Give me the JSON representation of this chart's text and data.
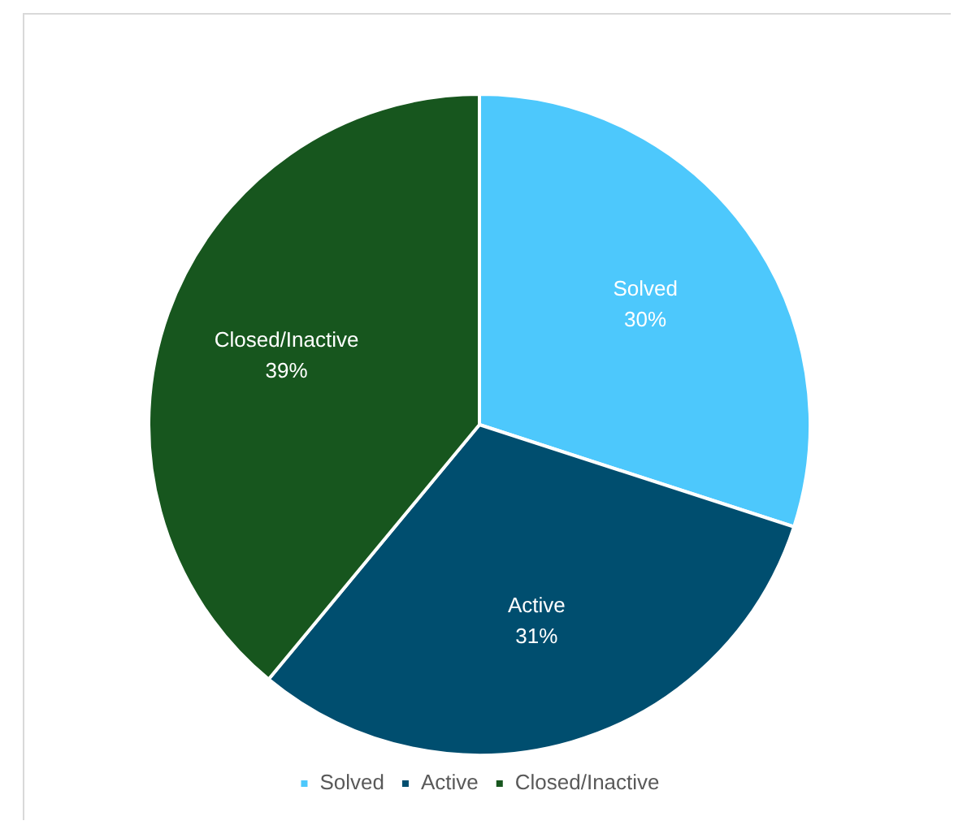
{
  "chart_data": {
    "type": "pie",
    "categories": [
      "Solved",
      "Active",
      "Closed/Inactive"
    ],
    "values": [
      30,
      31,
      39
    ],
    "colors": [
      "#4dc8fc",
      "#004e6f",
      "#17561e"
    ],
    "value_labels": [
      "30%",
      "31%",
      "39%"
    ],
    "legend": "bottom"
  }
}
